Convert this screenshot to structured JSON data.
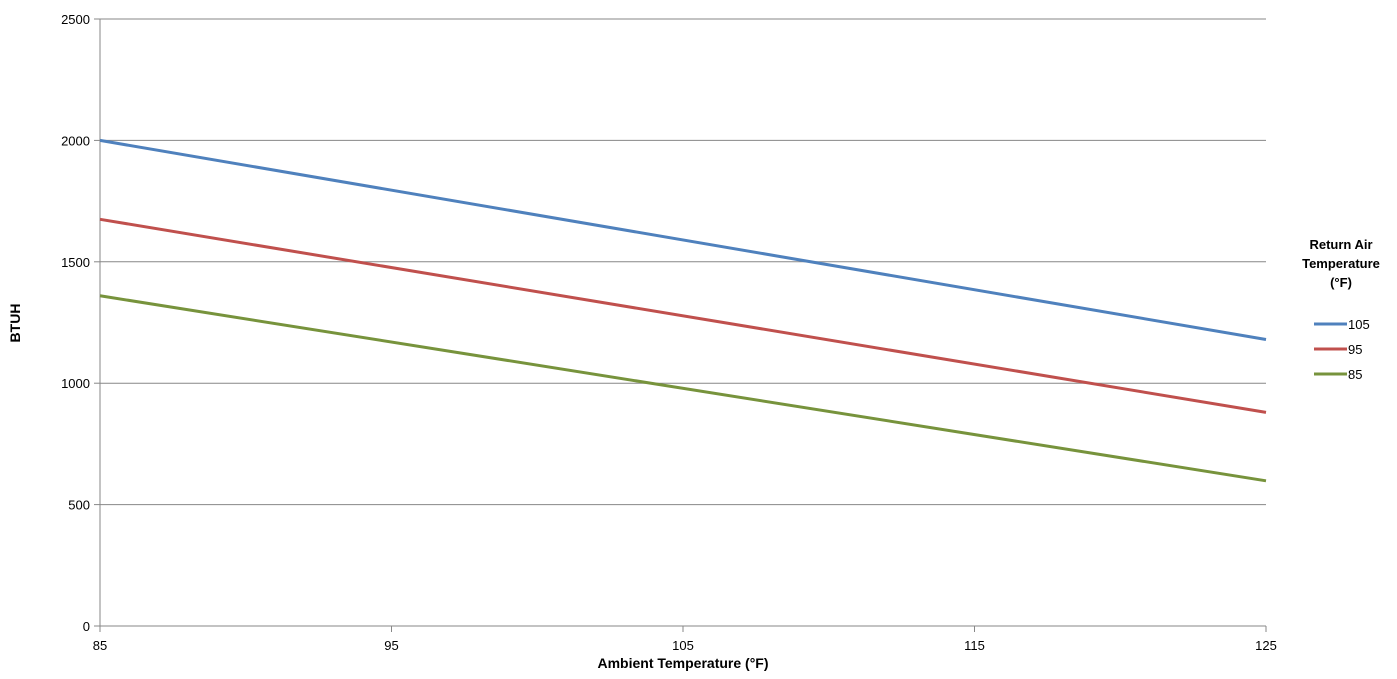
{
  "chart_data": {
    "type": "line",
    "title": "",
    "xlabel": "Ambient Temperature (°F)",
    "ylabel": "BTUH",
    "xlim": [
      85,
      125
    ],
    "ylim": [
      0,
      2500
    ],
    "x_ticks": [
      "85",
      "95",
      "105",
      "115",
      "125"
    ],
    "y_ticks": [
      "0",
      "500",
      "1000",
      "1500",
      "2000",
      "2500"
    ],
    "grid": "horizontal",
    "legend": {
      "title_lines": [
        "Return Air",
        "Temperature",
        "(°F)"
      ],
      "position": "right"
    },
    "x": [
      85,
      125
    ],
    "series": [
      {
        "name": "105",
        "color": "#4f81bd",
        "values": [
          2000,
          1180
        ]
      },
      {
        "name": "95",
        "color": "#c0504d",
        "values": [
          1675,
          880
        ]
      },
      {
        "name": "85",
        "color": "#77933c",
        "values": [
          1360,
          598
        ]
      }
    ]
  }
}
